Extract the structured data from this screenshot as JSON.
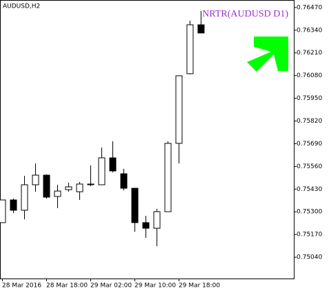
{
  "chart_data": {
    "type": "candlestick",
    "title": "AUDUSD,H2",
    "categories": [
      "28 Mar 2016",
      null,
      null,
      null,
      "28 Mar 18:00",
      null,
      null,
      null,
      "29 Mar 02:00",
      null,
      null,
      null,
      "29 Mar 10:00",
      null,
      null,
      null,
      "29 Mar 18:00",
      null,
      null
    ],
    "open": [
      0.75238,
      0.75368,
      0.75309,
      0.75455,
      0.7551,
      0.75388,
      0.75427,
      0.75415,
      0.75455,
      0.75455,
      0.75609,
      0.75518,
      0.75435,
      0.75238,
      0.75206,
      0.75301,
      0.75692,
      0.76091,
      0.76371
    ],
    "high": [
      0.75368,
      0.75376,
      0.75506,
      0.75577,
      0.75514,
      0.75455,
      0.75467,
      0.75471,
      0.75566,
      0.75668,
      0.75704,
      0.75546,
      0.75435,
      0.75277,
      0.75317,
      0.75704,
      0.76079,
      0.76395,
      0.7645
    ],
    "low": [
      0.75238,
      0.75293,
      0.75257,
      0.75415,
      0.75376,
      0.75321,
      0.75415,
      0.75368,
      0.75447,
      0.75455,
      0.75526,
      0.75423,
      0.75186,
      0.75151,
      0.75103,
      0.75301,
      0.75577,
      0.76087,
      0.76324
    ],
    "close": [
      0.75368,
      0.75309,
      0.75455,
      0.7551,
      0.75384,
      0.75419,
      0.75443,
      0.75459,
      0.75459,
      0.75609,
      0.75534,
      0.75435,
      0.75238,
      0.75206,
      0.75301,
      0.75692,
      0.76079,
      0.76371,
      0.76324
    ],
    "up_color": "#ffffff",
    "down_color": "#000000",
    "edge_color": "#000000",
    "ylim": [
      0.74918,
      0.76513
    ],
    "yticks": [
      {
        "value": 0.7647,
        "label": "0.76470"
      },
      {
        "value": 0.7634,
        "label": "0.76340"
      },
      {
        "value": 0.7621,
        "label": "0.76210"
      },
      {
        "value": 0.7608,
        "label": "0.76080"
      },
      {
        "value": 0.7595,
        "label": "0.75950"
      },
      {
        "value": 0.7582,
        "label": "0.75820"
      },
      {
        "value": 0.7569,
        "label": "0.75690"
      },
      {
        "value": 0.7556,
        "label": "0.75560"
      },
      {
        "value": 0.7543,
        "label": "0.75430"
      },
      {
        "value": 0.753,
        "label": "0.75300"
      },
      {
        "value": 0.7517,
        "label": "0.75170"
      },
      {
        "value": 0.7504,
        "label": "0.75040"
      }
    ],
    "annotation": {
      "text": "NRTR(AUDUSD D1)",
      "color": "#9932cc"
    }
  }
}
